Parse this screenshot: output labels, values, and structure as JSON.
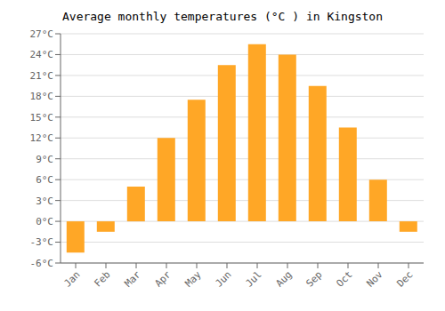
{
  "chart_data": {
    "type": "bar",
    "title": "Average monthly temperatures (°C ) in Kingston",
    "categories": [
      "Jan",
      "Feb",
      "Mar",
      "Apr",
      "May",
      "Jun",
      "Jul",
      "Aug",
      "Sep",
      "Oct",
      "Nov",
      "Dec"
    ],
    "values": [
      -4.5,
      -1.5,
      5.0,
      12.0,
      17.5,
      22.5,
      25.5,
      24.0,
      19.5,
      13.5,
      6.0,
      -1.5
    ],
    "color": "#FFA726",
    "ylim": [
      -6,
      27
    ],
    "yticks": [
      {
        "value": -6,
        "label": "-6°C"
      },
      {
        "value": -3,
        "label": "-3°C"
      },
      {
        "value": 0,
        "label": "0°C"
      },
      {
        "value": 3,
        "label": "3°C"
      },
      {
        "value": 6,
        "label": "6°C"
      },
      {
        "value": 9,
        "label": "9°C"
      },
      {
        "value": 12,
        "label": "12°C"
      },
      {
        "value": 15,
        "label": "15°C"
      },
      {
        "value": 18,
        "label": "18°C"
      },
      {
        "value": 21,
        "label": "21°C"
      },
      {
        "value": 24,
        "label": "24°C"
      },
      {
        "value": 27,
        "label": "27°C"
      }
    ],
    "grid": "y"
  }
}
